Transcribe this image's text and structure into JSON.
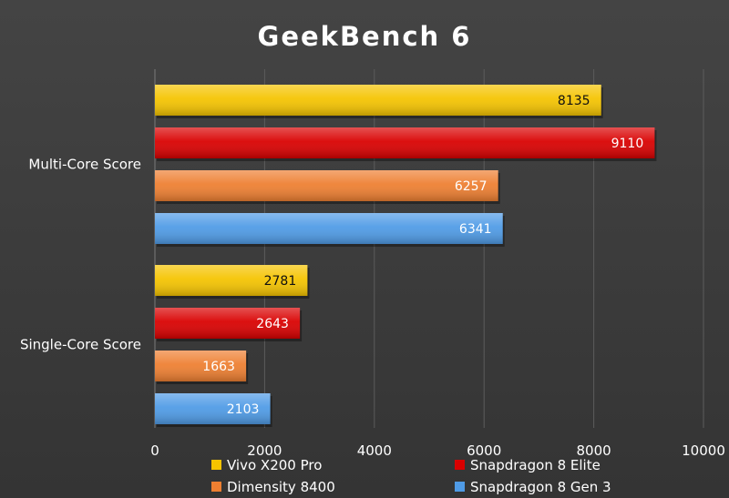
{
  "chart_data": {
    "type": "bar",
    "orientation": "horizontal",
    "title": "GeekBench 6",
    "categories": [
      "Multi-Core Score",
      "Single-Core Score"
    ],
    "series": [
      {
        "name": "Vivo X200 Pro",
        "color": "#f5c400",
        "label_color": "#111111",
        "values": [
          8135,
          2781
        ]
      },
      {
        "name": "Snapdragon 8 Elite",
        "color": "#d90000",
        "label_color": "#ffffff",
        "values": [
          9110,
          2643
        ]
      },
      {
        "name": "Dimensity 8400",
        "color": "#ee7f31",
        "label_color": "#ffffff",
        "values": [
          6257,
          1663
        ]
      },
      {
        "name": "Snapdragon 8 Gen 3",
        "color": "#4f9be6",
        "label_color": "#ffffff",
        "values": [
          6341,
          2103
        ]
      }
    ],
    "xlim": [
      0,
      10000
    ],
    "xticks": [
      "0",
      "2000",
      "4000",
      "6000",
      "8000",
      "10000"
    ],
    "grid": true,
    "legend_position": "bottom"
  }
}
